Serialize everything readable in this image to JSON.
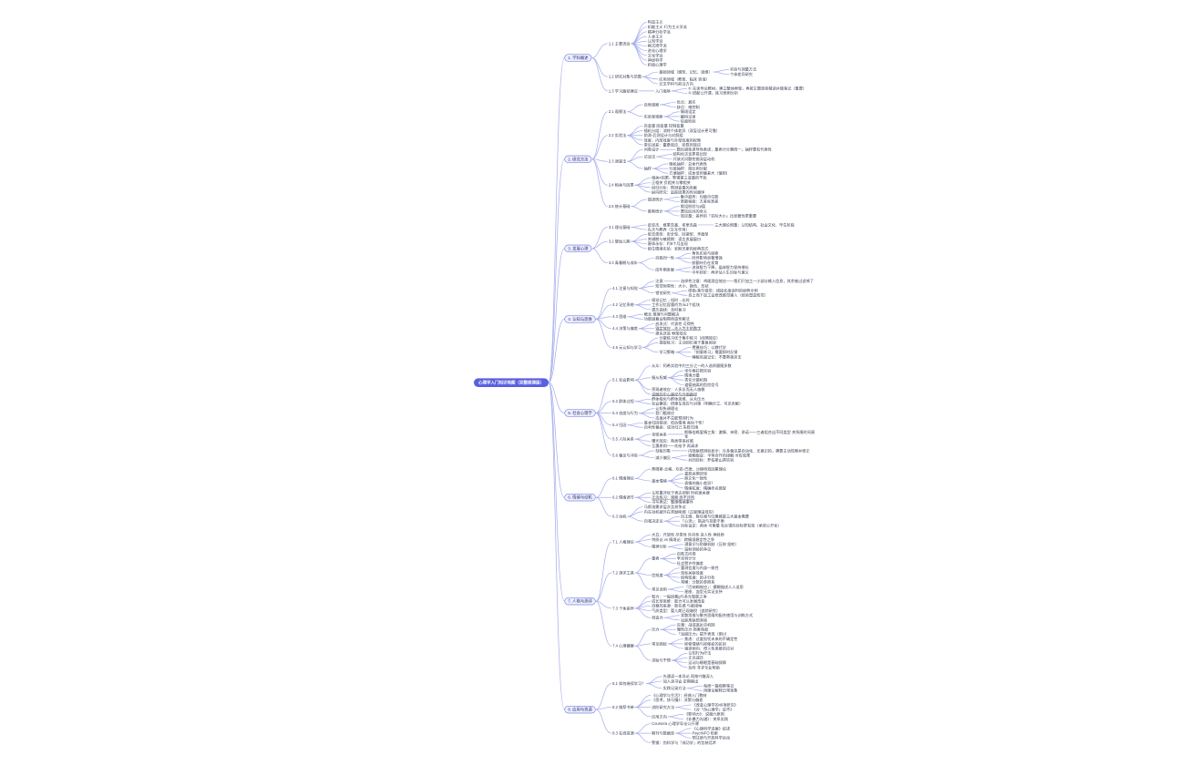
{
  "colors": {
    "root_bg": "#5a5fe0",
    "root_text": "#ffffff",
    "branch_fill": "#edeffd",
    "branch_border": "#7e86e8",
    "connector": "#a6aeed",
    "text": "#3a4054"
  },
  "mindmap": {
    "root": {
      "t": "心理学入门知识地图（完整梳理版）",
      "c": [
        {
          "t": "1. 学科概述",
          "c": [
            {
              "t": "1.1 主要流派",
              "c": [
                {
                  "t": "构造主义"
                },
                {
                  "t": "机能主义·行为主义学派"
                },
                {
                  "t": "精神分析学派"
                },
                {
                  "t": "人本主义"
                },
                {
                  "t": "认知学派"
                },
                {
                  "t": "格式塔学派"
                },
                {
                  "t": "进化心理学"
                },
                {
                  "t": "文化学派"
                },
                {
                  "t": "神经科学"
                },
                {
                  "t": "积极心理学"
                }
              ]
            },
            {
              "t": "1.2 研究对象与范围",
              "c": [
                {
                  "t": "基础领域（感知、记忆、思维）",
                  "c": [
                    {
                      "t": "实验与测量方法"
                    },
                    {
                      "t": "个体差异研究"
                    }
                  ]
                },
                {
                  "t": "应用领域（教育、临床 咨询）"
                },
                {
                  "t": "交叉学科与前沿方向"
                }
              ]
            },
            {
              "t": "1.3 学习路径建议",
              "c": [
                {
                  "t": "入门顺序",
                  "c": [
                    {
                      "t": "① 先读导论教材，建立整体框架，再按主题逐章精读并做笔记（重要）"
                    },
                    {
                      "t": "② 搭配公开课，练习案例分析"
                    }
                  ]
                }
              ]
            }
          ]
        },
        {
          "t": "2. 研究方法",
          "c": [
            {
              "t": "2.1 观察法",
              "c": [
                {
                  "t": "自然观察",
                  "c": [
                    {
                      "t": "优点：真实"
                    },
                    {
                      "t": "缺点：难控制"
                    }
                  ]
                },
                {
                  "t": "实验室观察",
                  "c": [
                    {
                      "t": "情境设定"
                    },
                    {
                      "t": "编码记录"
                    },
                    {
                      "t": "信度检验"
                    }
                  ]
                }
              ]
            },
            {
              "t": "2.2 实验法",
              "c": [
                {
                  "t": "自变量 因变量 控制变量"
                },
                {
                  "t": "随机分组：消除个体差异（双盲设计更可靠）"
                },
                {
                  "t": "前测-后测设计与对照组"
                },
                {
                  "t": "效度：内部效度与外部效度的权衡"
                },
                {
                  "t": "常见误差：霍桑效应、安慰剂效应"
                }
              ]
            },
            {
              "t": "2.3 调查法",
              "c": [
                {
                  "t": "问卷设计",
                  "c": [
                    {
                      "t": "题目避免诱导性表述，量表计分需统一，抽样要有代表性"
                    }
                  ]
                },
                {
                  "t": "访谈法",
                  "c": [
                    {
                      "t": "结构化访谈更易比较"
                    },
                    {
                      "t": "开放式问题挖掘深层动机"
                    }
                  ]
                },
                {
                  "t": "抽样",
                  "c": [
                    {
                      "t": "随机抽样：总体代表性"
                    },
                    {
                      "t": "分层抽样：按比例分配"
                    },
                    {
                      "t": "方便抽样：成本低但偏差大（慎用）"
                    }
                  ]
                }
              ]
            },
            {
              "t": "2.4 相关与因果",
              "c": [
                {
                  "t": "相关≠因果，警惕第三变量的干扰"
                },
                {
                  "t": "正相关 负相关与零相关"
                },
                {
                  "t": "回归分析：预测变量的贡献"
                },
                {
                  "t": "纵向研究：追踪因果的时间顺序"
                }
              ]
            },
            {
              "t": "2.5 统计基础",
              "c": [
                {
                  "t": "描述统计",
                  "c": [
                    {
                      "t": "集中趋势：均值中位数"
                    },
                    {
                      "t": "离散程度：方差标准差"
                    }
                  ]
                },
                {
                  "t": "推断统计",
                  "c": [
                    {
                      "t": "假设检验与p值"
                    },
                    {
                      "t": "置信区间的含义"
                    },
                    {
                      "t": "效应量：差异的「实际大小」比显著性更重要"
                    }
                  ]
                }
              ]
            }
          ]
        },
        {
          "t": "3. 发展心理",
          "c": [
            {
              "t": "3.1 理论基础",
              "c": [
                {
                  "t": "皮亚杰、维果茨基、埃里克森",
                  "c": [
                    {
                      "t": "三大理论侧重：认知结构、社会文化、毕生阶段"
                    }
                  ]
                },
                {
                  "t": "先天与教养（交互作用）"
                }
              ]
            },
            {
              "t": "3.2 婴幼儿期",
              "c": [
                {
                  "t": "依恋类型：安全型、回避型、矛盾型"
                },
                {
                  "t": "关键期与敏感期：语言发展窗口"
                },
                {
                  "t": "客体永存：约8个月出现"
                },
                {
                  "t": "陌生情境实验：安斯沃斯的经典范式"
                }
              ]
            },
            {
              "t": "3.3 青春期与成年",
              "c": [
                {
                  "t": "自我同一性",
                  "c": [
                    {
                      "t": "角色实验与探索"
                    },
                    {
                      "t": "同伴影响显著增强"
                    },
                    {
                      "t": "前额叶仍在发育"
                    }
                  ]
                },
                {
                  "t": "成年期发展",
                  "c": [
                    {
                      "t": "流体智力下降，晶体智力保持增长"
                    },
                    {
                      "t": "中年转折：再评估人生目标与意义"
                    }
                  ]
                }
              ]
            }
          ]
        },
        {
          "t": "4. 认知与思维",
          "c": [
            {
              "t": "4.1 注意与知觉",
              "c": [
                {
                  "t": "注意",
                  "c": [
                    {
                      "t": "选择性注意：鸡尾酒会效应——我们只加工一小部分输入信息，其余被过滤掉了"
                    }
                  ]
                },
                {
                  "t": "知觉恒常性：大小、颜色、形状"
                },
                {
                  "t": "错觉研究",
                  "c": [
                    {
                      "t": "缪勒-莱尔错觉：线段长度误判的经典示例"
                    },
                    {
                      "t": "自上而下加工会修改感觉输入（经验塑造知觉）"
                    }
                  ]
                }
              ]
            },
            {
              "t": "4.2 记忆系统",
              "c": [
                {
                  "t": "感觉记忆→短时→长时"
                },
                {
                  "t": "工作记忆容量约为4±1个组块"
                },
                {
                  "t": "遗忘曲线：及时复习"
                }
              ]
            },
            {
              "t": "4.3 思维",
              "c": [
                {
                  "t": "概念 推理与问题解决"
                },
                {
                  "t": "功能固着会阻碍创造性解法"
                }
              ]
            },
            {
              "t": "4.4 决策与偏差",
              "c": [
                {
                  "t": "启发式：代表性 可得性"
                },
                {
                  "t": "锚定效应→先入为主的数字",
                  "u": true
                },
                {
                  "t": "损失厌恶 框架效应"
                }
              ]
            },
            {
              "t": "4.5 元认知与学习",
              "c": [
                {
                  "t": "分散练习优于集中练习（间隔效应）"
                },
                {
                  "t": "提取练习：主动回忆强于重复阅读"
                },
                {
                  "t": "学习策略",
                  "c": [
                    {
                      "t": "费曼技巧：以教代学"
                    },
                    {
                      "t": "「刻意练习」需要即时反馈"
                    },
                    {
                      "t": "睡眠巩固记忆：不要熬夜突击"
                    }
                  ]
                }
              ]
            }
          ]
        },
        {
          "t": "5. 社会心理学",
          "c": [
            {
              "t": "5.1 社会影响",
              "c": [
                {
                  "t": "从众：阿希实验中约三分之一的人选择跟随多数"
                },
                {
                  "t": "服从权威",
                  "c": [
                    {
                      "t": "米尔格拉姆实验"
                    },
                    {
                      "t": "情境力量"
                    },
                    {
                      "t": "责任分散机制"
                    },
                    {
                      "t": "道德抽离的危险信号"
                    }
                  ]
                },
                {
                  "t": "旁观者效应：人多反而无人施救"
                },
                {
                  "t": "说服的中心路径与外周路径",
                  "u": true
                }
              ]
            },
            {
              "t": "5.2 群体过程",
              "c": [
                {
                  "t": "群体极化与群体思维、从众压力"
                },
                {
                  "t": "社会懈怠：搭便车效应与对策（明确分工、可见贡献）"
                }
              ]
            },
            {
              "t": "5.3 态度与行为",
              "c": [
                {
                  "t": "认知失调理论"
                },
                {
                  "t": "登门槛效应"
                },
                {
                  "t": "态度并不总能预测行为"
                }
              ]
            },
            {
              "t": "5.4 归因",
              "c": [
                {
                  "t": "基本归因错误：低估情境 高估个性？"
                },
                {
                  "t": "自利性偏差：成功归己 失败归境"
                }
              ]
            },
            {
              "t": "5.5 人际关系",
              "c": [
                {
                  "t": "亲密关系",
                  "c": [
                    {
                      "t": "斯滕伯格爱情三角：激情、亲密、承诺——三者组合出不同类型 关系随时间演化"
                    }
                  ]
                },
                {
                  "t": "曝光效应：熟悉带来好感"
                },
                {
                  "t": "互惠原则——先给予 再请求"
                }
              ]
            },
            {
              "t": "5.6 偏见与冲突",
              "c": [
                {
                  "t": "刻板印象",
                  "c": [
                    {
                      "t": "内隐联想测验显示：许多偏见是自动化、无意识的，需要主动觉察并修正"
                    }
                  ]
                },
                {
                  "t": "减少偏见",
                  "c": [
                    {
                      "t": "接触假说：平等合作的接触 才有效果"
                    },
                    {
                      "t": "共同目标：罗伯斯山洞实验"
                    }
                  ]
                }
              ]
            }
          ]
        },
        {
          "t": "6. 情绪与动机",
          "c": [
            {
              "t": "6.1 情绪理论",
              "c": [
                {
                  "t": "詹姆斯-兰格、坎农-巴德、沙赫特双因素理论"
                },
                {
                  "t": "基本情绪",
                  "c": [
                    {
                      "t": "喜怒哀惧厌惊"
                    },
                    {
                      "t": "跨文化一致性"
                    },
                    {
                      "t": "表情的微小差异？"
                    },
                    {
                      "t": "情绪粒度：精确命名感受"
                    }
                  ]
                }
              ]
            },
            {
              "t": "6.2 情绪调节",
              "c": [
                {
                  "t": "认知重评优于表达抑制 时机很关键"
                },
                {
                  "t": "正念练习：观察 而不评判",
                  "u": true
                },
                {
                  "t": "书写表达：整理情绪事件"
                }
              ]
            },
            {
              "t": "6.3 动机",
              "c": [
                {
                  "t": "马斯洛需求层次及其争议"
                },
                {
                  "t": "内在动机被外在奖励削弱（过度理由效应）"
                },
                {
                  "t": "自我决定论",
                  "c": [
                    {
                      "t": "自主感、胜任感与归属感是三大基本需要"
                    },
                    {
                      "t": "「心流」：挑战与技能平衡"
                    },
                    {
                      "t": "目标设定：具体 可衡量 有反馈的目标更有效（承诺公开化）"
                    }
                  ]
                }
              ]
            }
          ]
        },
        {
          "t": "7. 人格与测评",
          "c": [
            {
              "t": "7.1 人格理论",
              "c": [
                {
                  "t": "大五：开放性 尽责性 外向性 宜人性 神经质"
                },
                {
                  "t": "特质论 vs 情境论：跨情境稳定性之争"
                },
                {
                  "t": "精神分析",
                  "c": [
                    {
                      "t": "潜意识与防御机制（压抑 投射）"
                    },
                    {
                      "t": "投射测验的争议"
                    }
                  ]
                }
              ]
            },
            {
              "t": "7.2 测评工具",
              "c": [
                {
                  "t": "量表",
                  "c": [
                    {
                      "t": "自陈式问卷"
                    },
                    {
                      "t": "李克特计分"
                    },
                    {
                      "t": "社会赞许性偏差"
                    }
                  ]
                },
                {
                  "t": "信效度",
                  "c": [
                    {
                      "t": "重测信度与内部一致性"
                    },
                    {
                      "t": "效标关联效度"
                    },
                    {
                      "t": "结构效度：因子分析"
                    },
                    {
                      "t": "常模：分数的参照系"
                    }
                  ]
                },
                {
                  "t": "常见误用",
                  "c": [
                    {
                      "t": "「巴纳姆效应」：模糊描述人人适用"
                    },
                    {
                      "t": "星座、血型无实证支持"
                    }
                  ]
                }
              ]
            },
            {
              "t": "7.3 个体差异",
              "c": [
                {
                  "t": "智力：一般因素g与多元智能之争"
                },
                {
                  "t": "成长型思维：能力可以发展改变"
                },
                {
                  "t": "自尊的来源：胜任感 与被接纳"
                },
                {
                  "t": "气质类型：婴儿期已现端倪（追踪研究）"
                },
                {
                  "t": "创造力",
                  "c": [
                    {
                      "t": "发散思维与聚合思维的配合使用与训练方式"
                    },
                    {
                      "t": "远距离联想测验"
                    }
                  ]
                }
              ]
            },
            {
              "t": "7.4 心理健康",
              "c": [
                {
                  "t": "压力",
                  "c": [
                    {
                      "t": "应激：战或逃反应机制"
                    },
                    {
                      "t": "慢性压力 损害免疫"
                    },
                    {
                      "t": "「适度压力」提升表现（倒U）"
                    }
                  ]
                },
                {
                  "t": "常见困扰",
                  "c": [
                    {
                      "t": "焦虑：过度担忧未来的不确定性"
                    },
                    {
                      "t": "抑郁情绪与抑郁症的区别"
                    },
                    {
                      "t": "强迫倾向：侵入性思维的应对"
                    }
                  ]
                },
                {
                  "t": "求助与干预",
                  "c": [
                    {
                      "t": "认知行为疗法"
                    },
                    {
                      "t": "正念减压"
                    },
                    {
                      "t": "运动与睡眠是基础保障"
                    },
                    {
                      "t": "及时 寻求专业帮助"
                    }
                  ]
                }
              ]
            }
          ]
        },
        {
          "t": "8. 应用与资源",
          "c": [
            {
              "t": "8.1 如何继续学习？",
              "c": [
                {
                  "t": "先通读一本导论 再按兴趣深入"
                },
                {
                  "t": "加入读书会 定期输出"
                },
                {
                  "t": "实践记录方法",
                  "c": [
                    {
                      "t": "每周一篇观察笔记"
                    },
                    {
                      "t": "用理论解释日常现象"
                    }
                  ]
                }
              ]
            },
            {
              "t": "8.2 推荐书单",
              "c": [
                {
                  "t": "《心理学与生活》：经典入门教材"
                },
                {
                  "t": "《思考，快与慢》：决策与偏差"
                },
                {
                  "t": "进阶研究方法",
                  "c": [
                    {
                      "t": "《改变心理学的40项研究》"
                    },
                    {
                      "t": "《对「伪心理学」说不》"
                    }
                  ]
                },
                {
                  "t": "应用方向",
                  "c": [
                    {
                      "t": "《影响力》：说服六原则"
                    },
                    {
                      "t": "《非暴力沟通》：关系实践"
                    }
                  ]
                }
              ]
            },
            {
              "t": "8.3 在线资源",
              "c": [
                {
                  "t": "Coursera 心理学导论公开课"
                },
                {
                  "t": "期刊与数据库",
                  "c": [
                    {
                      "t": "《心理科学进展》综述"
                    },
                    {
                      "t": "PsycINFO 检索"
                    },
                    {
                      "t": "预注册与开放科学运动"
                    }
                  ]
                },
                {
                  "t": "警惕：伪科学与「成功学」的包装话术"
                }
              ]
            }
          ]
        }
      ]
    }
  }
}
